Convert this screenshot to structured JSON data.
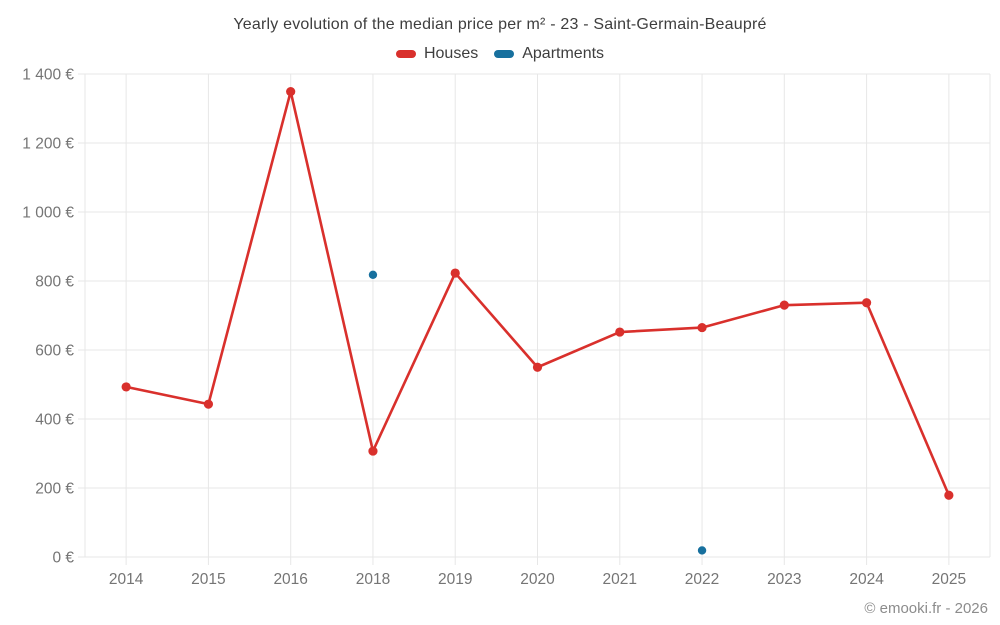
{
  "title": "Yearly evolution of the median price per m² - 23 - Saint-Germain-Beaupré",
  "legend": [
    {
      "label": "Houses",
      "color": "#d9302c"
    },
    {
      "label": "Apartments",
      "color": "#17709e"
    }
  ],
  "footer": {
    "copyright": "© emooki.fr - 2026"
  },
  "colors": {
    "houses": "#d9302c",
    "apartments": "#17709e",
    "grid": "#e7e7e7",
    "axis_text": "#757575",
    "title_text": "#3e3e3e",
    "background": "#ffffff"
  },
  "chart_data": {
    "type": "line",
    "title": "Yearly evolution of the median price per m² - 23 - Saint-Germain-Beaupré",
    "categories": [
      "2014",
      "2015",
      "2016",
      "2018",
      "2019",
      "2020",
      "2021",
      "2022",
      "2023",
      "2024",
      "2025"
    ],
    "series": [
      {
        "name": "Houses",
        "color": "#d9302c",
        "values": [
          493,
          443,
          1349,
          307,
          823,
          550,
          652,
          665,
          730,
          737,
          179
        ],
        "marker_radius": 4.6,
        "line_width": 2.6
      },
      {
        "name": "Apartments",
        "color": "#17709e",
        "values": [
          null,
          null,
          null,
          818,
          null,
          null,
          null,
          19,
          null,
          null,
          null
        ],
        "marker_radius": 4.2,
        "line_width": 2.6
      }
    ],
    "xlabel": "",
    "ylabel": "",
    "ylim": [
      0,
      1400
    ],
    "y_tick_step": 200,
    "y_tick_suffix": " €",
    "grid": true,
    "legend_position": "top"
  }
}
